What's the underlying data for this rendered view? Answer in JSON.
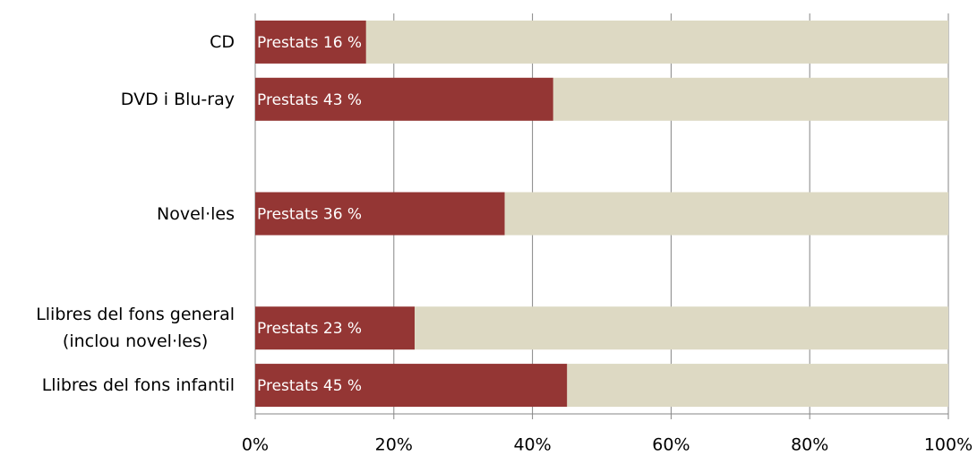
{
  "chart_data": {
    "type": "stacked-barh",
    "categories": [
      "CD",
      "DVD i Blu-ray",
      null,
      "Novel·les",
      null,
      "Llibres del fons general\n(inclou novel·les)",
      "Llibres del fons infantil"
    ],
    "series": [
      {
        "color": "#943634",
        "values": [
          16,
          43,
          null,
          36,
          null,
          23,
          45
        ],
        "value_labels": [
          "Prestats 16 %",
          "Prestats 43 %",
          null,
          "Prestats 36 %",
          null,
          "Prestats 23 %",
          "Prestats 45 %"
        ]
      },
      {
        "color": "#ddd9c3",
        "values": [
          84,
          57,
          null,
          64,
          null,
          77,
          55
        ]
      }
    ],
    "xlim": [
      0,
      100
    ],
    "xticks": [
      {
        "value": 0,
        "label": "0%"
      },
      {
        "value": 20,
        "label": "20%"
      },
      {
        "value": 40,
        "label": "40%"
      },
      {
        "value": 60,
        "label": "60%"
      },
      {
        "value": 80,
        "label": "80%"
      },
      {
        "value": 100,
        "label": "100%"
      }
    ],
    "grid": true
  }
}
